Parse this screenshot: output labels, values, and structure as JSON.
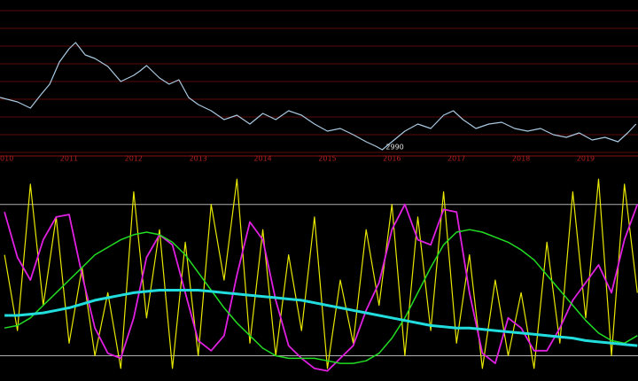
{
  "chart_data": [
    {
      "type": "line",
      "x": [
        2009.93,
        2010.2,
        2010.4,
        2010.55,
        2010.7,
        2010.85,
        2011.0,
        2011.1,
        2011.25,
        2011.4,
        2011.6,
        2011.8,
        2012.0,
        2012.1,
        2012.2,
        2012.4,
        2012.55,
        2012.7,
        2012.85,
        2013.0,
        2013.2,
        2013.4,
        2013.6,
        2013.8,
        2014.0,
        2014.2,
        2014.4,
        2014.6,
        2014.8,
        2015.0,
        2015.2,
        2015.4,
        2015.6,
        2015.75,
        2015.85,
        2016.0,
        2016.2,
        2016.4,
        2016.6,
        2016.8,
        2016.95,
        2017.1,
        2017.3,
        2017.5,
        2017.7,
        2017.9,
        2018.1,
        2018.3,
        2018.5,
        2018.7,
        2018.9,
        2019.1,
        2019.3,
        2019.5,
        2019.65,
        2019.78
      ],
      "series": [
        {
          "color": "#a9c8e0",
          "values": [
            3580,
            3530,
            3460,
            3600,
            3730,
            3980,
            4130,
            4200,
            4060,
            4020,
            3930,
            3760,
            3830,
            3880,
            3940,
            3800,
            3730,
            3780,
            3580,
            3500,
            3430,
            3330,
            3380,
            3280,
            3400,
            3330,
            3430,
            3380,
            3280,
            3200,
            3230,
            3160,
            3080,
            3030,
            2990,
            3080,
            3200,
            3280,
            3230,
            3380,
            3430,
            3330,
            3230,
            3280,
            3300,
            3230,
            3200,
            3230,
            3160,
            3130,
            3180,
            3100,
            3130,
            3080,
            3180,
            3280
          ]
        }
      ],
      "xlim": [
        2009.93,
        2019.81
      ],
      "xticks": [
        2010,
        2011,
        2012,
        2013,
        2014,
        2015,
        2016,
        2017,
        2018,
        2019
      ],
      "ylim": [
        2900,
        4680
      ],
      "gridlines": [
        4560,
        4360,
        4160,
        3960,
        3760,
        3560,
        3360,
        3160,
        2960
      ],
      "grid_color": "#5a0a0a",
      "tick_color": "#b02020",
      "annotations": [
        "2990"
      ]
    },
    {
      "type": "line",
      "x": [
        2010.0,
        2010.2,
        2010.4,
        2010.6,
        2010.8,
        2011.0,
        2011.2,
        2011.4,
        2011.6,
        2011.8,
        2012.0,
        2012.2,
        2012.4,
        2012.6,
        2012.8,
        2013.0,
        2013.2,
        2013.4,
        2013.6,
        2013.8,
        2014.0,
        2014.2,
        2014.4,
        2014.6,
        2014.8,
        2015.0,
        2015.2,
        2015.4,
        2015.6,
        2015.8,
        2016.0,
        2016.2,
        2016.4,
        2016.6,
        2016.8,
        2017.0,
        2017.2,
        2017.4,
        2017.6,
        2017.8,
        2018.0,
        2018.2,
        2018.4,
        2018.6,
        2018.8,
        2019.0,
        2019.2,
        2019.4,
        2019.6,
        2019.8
      ],
      "series": [
        {
          "color": "#e8e800",
          "width": 1.2,
          "values": [
            60,
            30,
            88,
            40,
            75,
            25,
            55,
            20,
            45,
            15,
            85,
            35,
            70,
            15,
            65,
            20,
            80,
            50,
            90,
            25,
            70,
            20,
            60,
            30,
            75,
            15,
            50,
            25,
            70,
            40,
            80,
            20,
            75,
            30,
            85,
            25,
            60,
            15,
            50,
            20,
            45,
            15,
            65,
            25,
            85,
            35,
            90,
            20,
            88,
            45
          ]
        },
        {
          "color": "#e020e0",
          "width": 1.8,
          "values": [
            77,
            59,
            50,
            66,
            75,
            76,
            52,
            31,
            21,
            19,
            35,
            59,
            68,
            64,
            45,
            26,
            22,
            28,
            52,
            73,
            66,
            42,
            24,
            19,
            15,
            14,
            19,
            24,
            38,
            49,
            70,
            80,
            66,
            64,
            78,
            77,
            45,
            21,
            17,
            35,
            31,
            22,
            22,
            31,
            42,
            49,
            56,
            45,
            66,
            80
          ]
        },
        {
          "color": "#22dd22",
          "width": 1.5,
          "values": [
            31,
            32,
            35,
            40,
            45,
            50,
            55,
            60,
            63,
            66,
            68,
            69,
            68,
            65,
            60,
            53,
            46,
            39,
            33,
            28,
            23,
            20,
            19,
            19,
            19,
            18,
            17,
            17,
            18,
            21,
            27,
            35,
            45,
            55,
            64,
            69,
            70,
            69,
            67,
            65,
            62,
            58,
            52,
            46,
            40,
            34,
            29,
            26,
            25,
            28
          ]
        },
        {
          "color": "#22dddd",
          "width": 3,
          "values": [
            36,
            36,
            36.5,
            37,
            38,
            39,
            40.5,
            42,
            43,
            44,
            45,
            45.5,
            46,
            46,
            46,
            46,
            45.5,
            45,
            44.5,
            44,
            43.5,
            43,
            42.5,
            42,
            41,
            40,
            39,
            38,
            37,
            36,
            35,
            34,
            33,
            32,
            31.5,
            31,
            31,
            30.5,
            30,
            29.5,
            29,
            28.5,
            28,
            27.5,
            27,
            26,
            25.5,
            25,
            24.5,
            24
          ]
        }
      ],
      "xlim": [
        2009.93,
        2019.81
      ],
      "ylim": [
        10,
        95
      ],
      "reference_lines": [
        20,
        80
      ],
      "reference_color": "#b0b0b0"
    }
  ]
}
